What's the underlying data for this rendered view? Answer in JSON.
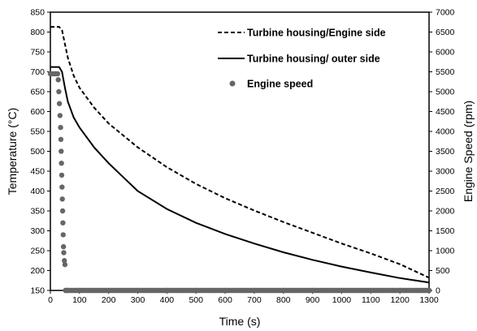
{
  "chart_data": {
    "type": "line",
    "title": "",
    "xlabel": "Time (s)",
    "ylabel": "Temperature (°C)",
    "y2label": "Engine Speed (rpm)",
    "xlim": [
      0,
      1300
    ],
    "ylim": [
      150,
      850
    ],
    "y2lim": [
      0,
      7000
    ],
    "x_ticks": [
      "0",
      "100",
      "200",
      "300",
      "400",
      "500",
      "600",
      "700",
      "800",
      "900",
      "1000",
      "1100",
      "1200",
      "1300"
    ],
    "y_ticks": [
      "150",
      "200",
      "250",
      "300",
      "350",
      "400",
      "450",
      "500",
      "550",
      "600",
      "650",
      "700",
      "750",
      "800",
      "850"
    ],
    "y2_ticks": [
      "0",
      "500",
      "1000",
      "1500",
      "2000",
      "2500",
      "3000",
      "3500",
      "4000",
      "4500",
      "5000",
      "5500",
      "6000",
      "6500",
      "7000"
    ],
    "grid": false,
    "legend_position": "top-right",
    "series": [
      {
        "name": "Turbine housing/Engine side",
        "style": "dashed",
        "axis": "left",
        "color": "#000000",
        "x": [
          0,
          30,
          40,
          50,
          60,
          80,
          100,
          150,
          200,
          300,
          400,
          500,
          600,
          700,
          800,
          900,
          1000,
          1100,
          1200,
          1300
        ],
        "y": [
          813,
          813,
          805,
          770,
          735,
          690,
          660,
          610,
          570,
          510,
          460,
          418,
          382,
          351,
          322,
          295,
          268,
          243,
          216,
          182
        ]
      },
      {
        "name": "Turbine housing/ outer side",
        "style": "solid",
        "axis": "left",
        "color": "#000000",
        "x": [
          0,
          30,
          40,
          50,
          60,
          80,
          100,
          150,
          200,
          300,
          400,
          500,
          600,
          700,
          800,
          900,
          1000,
          1100,
          1200,
          1300
        ],
        "y": [
          712,
          712,
          700,
          660,
          625,
          585,
          560,
          510,
          470,
          400,
          355,
          320,
          292,
          268,
          246,
          227,
          210,
          195,
          181,
          170
        ]
      },
      {
        "name": "Engine speed",
        "style": "markers",
        "axis": "right",
        "color": "#666666",
        "x": [
          0,
          5,
          10,
          15,
          20,
          25,
          27,
          29,
          31,
          33,
          35,
          36,
          37,
          38,
          39,
          40,
          41,
          42,
          43,
          44,
          45,
          46,
          48,
          50,
          52,
          60,
          100,
          200,
          300,
          400,
          500,
          600,
          700,
          800,
          900,
          1000,
          1100,
          1200,
          1300
        ],
        "y": [
          5450,
          5450,
          5450,
          5450,
          5450,
          5450,
          5300,
          5000,
          4700,
          4400,
          4100,
          3800,
          3500,
          3200,
          2900,
          2600,
          2300,
          2000,
          1700,
          1400,
          1100,
          950,
          750,
          650,
          0,
          0,
          0,
          0,
          0,
          0,
          0,
          0,
          0,
          0,
          0,
          0,
          0,
          0,
          0
        ]
      }
    ]
  }
}
